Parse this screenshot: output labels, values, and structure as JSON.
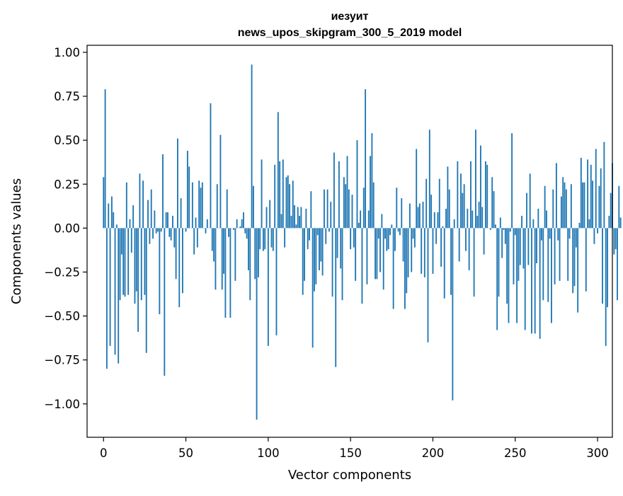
{
  "chart_data": {
    "type": "bar",
    "title_line1": "иезуит",
    "title_line2": "news_upos_skipgram_300_5_2019 model",
    "xlabel": "Vector components",
    "ylabel": "Components values",
    "xlim": [
      -10,
      309
    ],
    "ylim": [
      -1.19,
      1.04
    ],
    "x_ticks": [
      0,
      50,
      100,
      150,
      200,
      250,
      300
    ],
    "x_tick_labels": [
      "0",
      "50",
      "100",
      "150",
      "200",
      "250",
      "300"
    ],
    "y_ticks": [
      1.0,
      0.75,
      0.5,
      0.25,
      0.0,
      -0.25,
      -0.5,
      -0.75,
      -1.0
    ],
    "y_tick_labels": [
      "1.00",
      "0.75",
      "0.50",
      "0.25",
      "0.00",
      "−0.25",
      "−0.50",
      "−0.75",
      "−1.00"
    ],
    "bar_color": "#1f77b4",
    "grid": false,
    "values": [
      0.29,
      0.79,
      -0.8,
      0.14,
      -0.67,
      0.18,
      0.09,
      -0.72,
      0.02,
      -0.77,
      -0.41,
      -0.15,
      -0.38,
      -0.39,
      0.26,
      -0.38,
      0.05,
      -0.14,
      0.13,
      -0.43,
      -0.36,
      -0.59,
      0.31,
      -0.41,
      0.27,
      -0.38,
      -0.71,
      0.16,
      -0.09,
      0.22,
      -0.06,
      0.1,
      -0.03,
      -0.02,
      -0.49,
      -0.02,
      0.42,
      -0.84,
      0.09,
      0.09,
      -0.05,
      -0.07,
      0.07,
      -0.11,
      -0.29,
      0.51,
      -0.45,
      0.17,
      -0.37,
      0.0,
      -0.02,
      0.44,
      0.35,
      0.0,
      0.26,
      -0.15,
      0.06,
      -0.11,
      0.27,
      0.23,
      0.26,
      0.0,
      -0.03,
      0.05,
      0.0,
      0.71,
      -0.13,
      -0.19,
      -0.35,
      0.25,
      0.0,
      0.53,
      -0.35,
      -0.26,
      -0.51,
      0.22,
      -0.05,
      -0.51,
      0.0,
      -0.01,
      -0.3,
      0.05,
      0.0,
      0.01,
      0.05,
      0.09,
      -0.03,
      -0.06,
      -0.24,
      -0.41,
      0.93,
      0.24,
      -0.29,
      -1.09,
      -0.28,
      -0.12,
      0.39,
      -0.13,
      -0.12,
      0.12,
      -0.67,
      0.16,
      -0.11,
      -0.13,
      0.36,
      -0.61,
      0.66,
      0.38,
      0.08,
      0.39,
      -0.11,
      0.29,
      0.3,
      0.25,
      0.07,
      0.27,
      0.13,
      0.02,
      0.12,
      0.07,
      0.12,
      -0.38,
      -0.3,
      0.11,
      -0.12,
      -0.07,
      0.21,
      -0.68,
      -0.36,
      -0.32,
      -0.04,
      -0.24,
      -0.19,
      -0.27,
      0.22,
      -0.09,
      0.22,
      -0.02,
      0.15,
      -0.39,
      0.43,
      -0.79,
      -0.17,
      0.38,
      -0.23,
      -0.41,
      0.29,
      0.25,
      0.41,
      0.22,
      -0.12,
      0.19,
      -0.11,
      -0.3,
      0.5,
      0.03,
      0.1,
      -0.43,
      0.23,
      0.79,
      -0.32,
      0.1,
      0.41,
      0.54,
      0.26,
      -0.29,
      -0.29,
      -0.06,
      -0.25,
      0.08,
      -0.35,
      -0.06,
      -0.13,
      -0.12,
      -0.04,
      0.02,
      -0.46,
      -0.13,
      0.23,
      -0.02,
      -0.04,
      0.17,
      -0.19,
      -0.46,
      -0.37,
      -0.28,
      0.14,
      -0.25,
      -0.06,
      -0.11,
      0.45,
      0.12,
      0.14,
      -0.26,
      0.15,
      -0.28,
      0.28,
      -0.65,
      0.56,
      0.19,
      -0.26,
      0.09,
      -0.09,
      0.09,
      0.28,
      -0.22,
      0.01,
      -0.4,
      0.11,
      0.35,
      0.22,
      -0.38,
      -0.98,
      0.05,
      0.0,
      0.38,
      -0.19,
      0.31,
      0.2,
      0.25,
      -0.13,
      0.11,
      -0.24,
      0.38,
      0.1,
      -0.39,
      0.56,
      0.07,
      0.15,
      0.47,
      0.12,
      -0.15,
      0.38,
      0.36,
      0.0,
      -0.01,
      0.29,
      0.21,
      0.02,
      -0.58,
      -0.39,
      0.06,
      -0.17,
      -0.01,
      -0.09,
      -0.43,
      -0.54,
      -0.02,
      0.54,
      -0.32,
      -0.04,
      -0.54,
      -0.3,
      -0.21,
      0.07,
      -0.23,
      -0.58,
      0.2,
      -0.21,
      0.31,
      -0.6,
      0.05,
      -0.6,
      -0.2,
      0.11,
      -0.63,
      -0.07,
      -0.41,
      0.24,
      0.1,
      -0.42,
      -0.06,
      -0.54,
      0.22,
      -0.32,
      0.37,
      -0.07,
      -0.3,
      0.18,
      0.29,
      0.26,
      0.22,
      -0.3,
      -0.06,
      0.25,
      -0.37,
      -0.33,
      -0.11,
      -0.48,
      0.03,
      0.4,
      0.26,
      0.26,
      -0.36,
      0.39,
      0.05,
      0.36,
      0.27,
      -0.09,
      0.45,
      -0.03,
      0.24,
      0.34,
      -0.43,
      0.49,
      -0.67,
      -0.45,
      0.07,
      0.2,
      0.37,
      -0.15,
      -0.12,
      -0.41,
      0.24,
      0.06
    ]
  }
}
